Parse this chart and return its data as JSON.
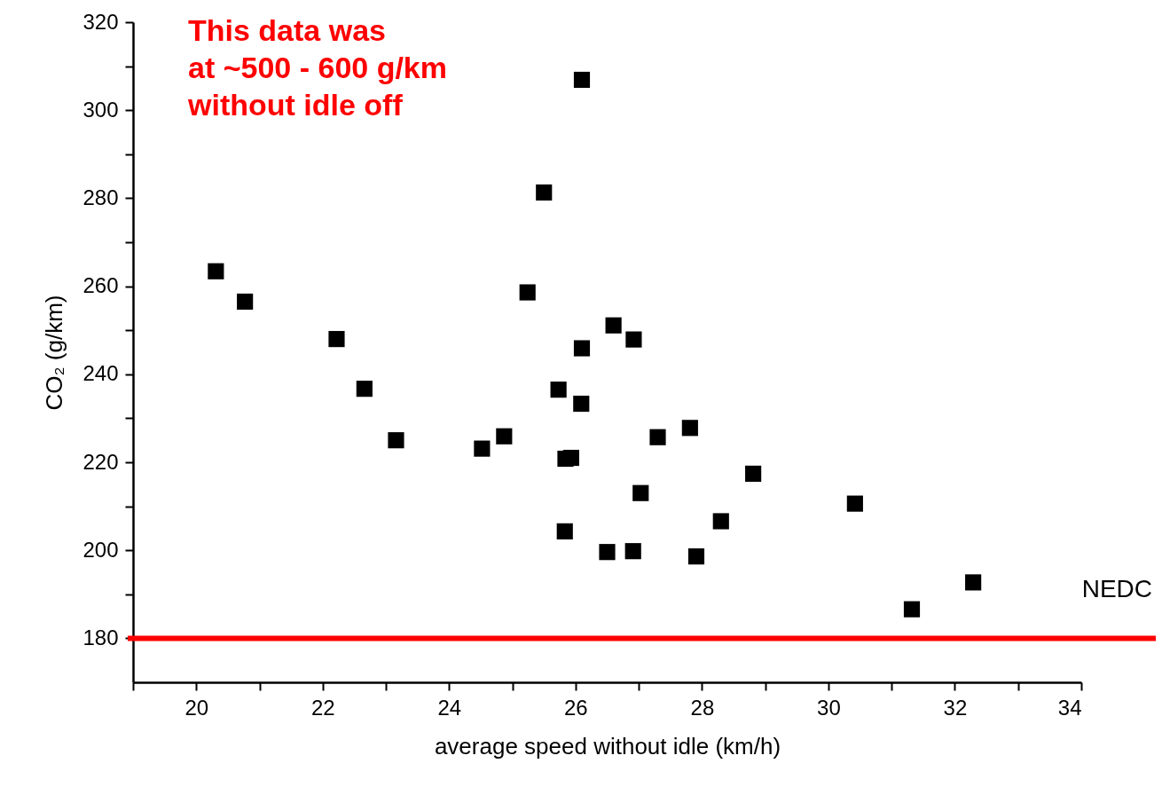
{
  "chart_data": {
    "type": "scatter",
    "xlabel": "average speed without idle (km/h)",
    "ylabel": "CO₂ (g/km)",
    "annotations": [
      "This data was\nat ~500 - 600 g/km\nwithout idle off"
    ],
    "x": [
      26.1,
      25.5,
      20.31,
      20.77,
      25.24,
      26.6,
      26.92,
      26.1,
      22.22,
      22.66,
      25.73,
      26.09,
      23.16,
      24.52,
      24.87,
      25.84,
      25.93,
      27.03,
      25.83,
      26.5,
      26.91,
      27.3,
      27.81,
      27.91,
      28.3,
      28.81,
      30.42,
      31.32,
      32.29
    ],
    "series": [
      {
        "color": "#000000",
        "values": [
          306.9,
          281.3,
          263.4,
          256.5,
          258.6,
          251.1,
          247.9,
          245.9,
          248.0,
          236.7,
          236.5,
          233.3,
          225.0,
          223.1,
          225.9,
          220.8,
          221.0,
          213.0,
          204.3,
          199.6,
          199.8,
          225.7,
          227.8,
          198.6,
          206.6,
          217.4,
          210.6,
          186.6,
          192.7
        ]
      }
    ],
    "marker": "square",
    "xlim": [
      19,
      34
    ],
    "xticks": [
      {
        "value": 19,
        "label": null
      },
      20,
      {
        "value": 21,
        "label": null
      },
      22,
      {
        "value": 23,
        "label": null
      },
      24,
      {
        "value": 25,
        "label": null
      },
      26,
      {
        "value": 27,
        "label": null
      },
      28,
      {
        "value": 29,
        "label": null
      },
      30,
      {
        "value": 31,
        "label": null
      },
      32,
      {
        "value": 33,
        "label": null
      },
      34
    ],
    "ylim": [
      170,
      320
    ],
    "yticks": [
      180,
      {
        "value": 190,
        "label": null
      },
      200,
      {
        "value": 210,
        "label": null
      },
      220,
      {
        "value": 230,
        "label": null
      },
      240,
      {
        "value": 250,
        "label": null
      },
      260,
      {
        "value": 270,
        "label": null
      },
      280,
      {
        "value": 290,
        "label": null
      },
      300,
      {
        "value": 310,
        "label": null
      },
      320
    ],
    "ref_lines": [
      {
        "axis": "y",
        "value": 180,
        "label": "NEDC",
        "color": "#ff0000"
      }
    ],
    "grid": false
  }
}
